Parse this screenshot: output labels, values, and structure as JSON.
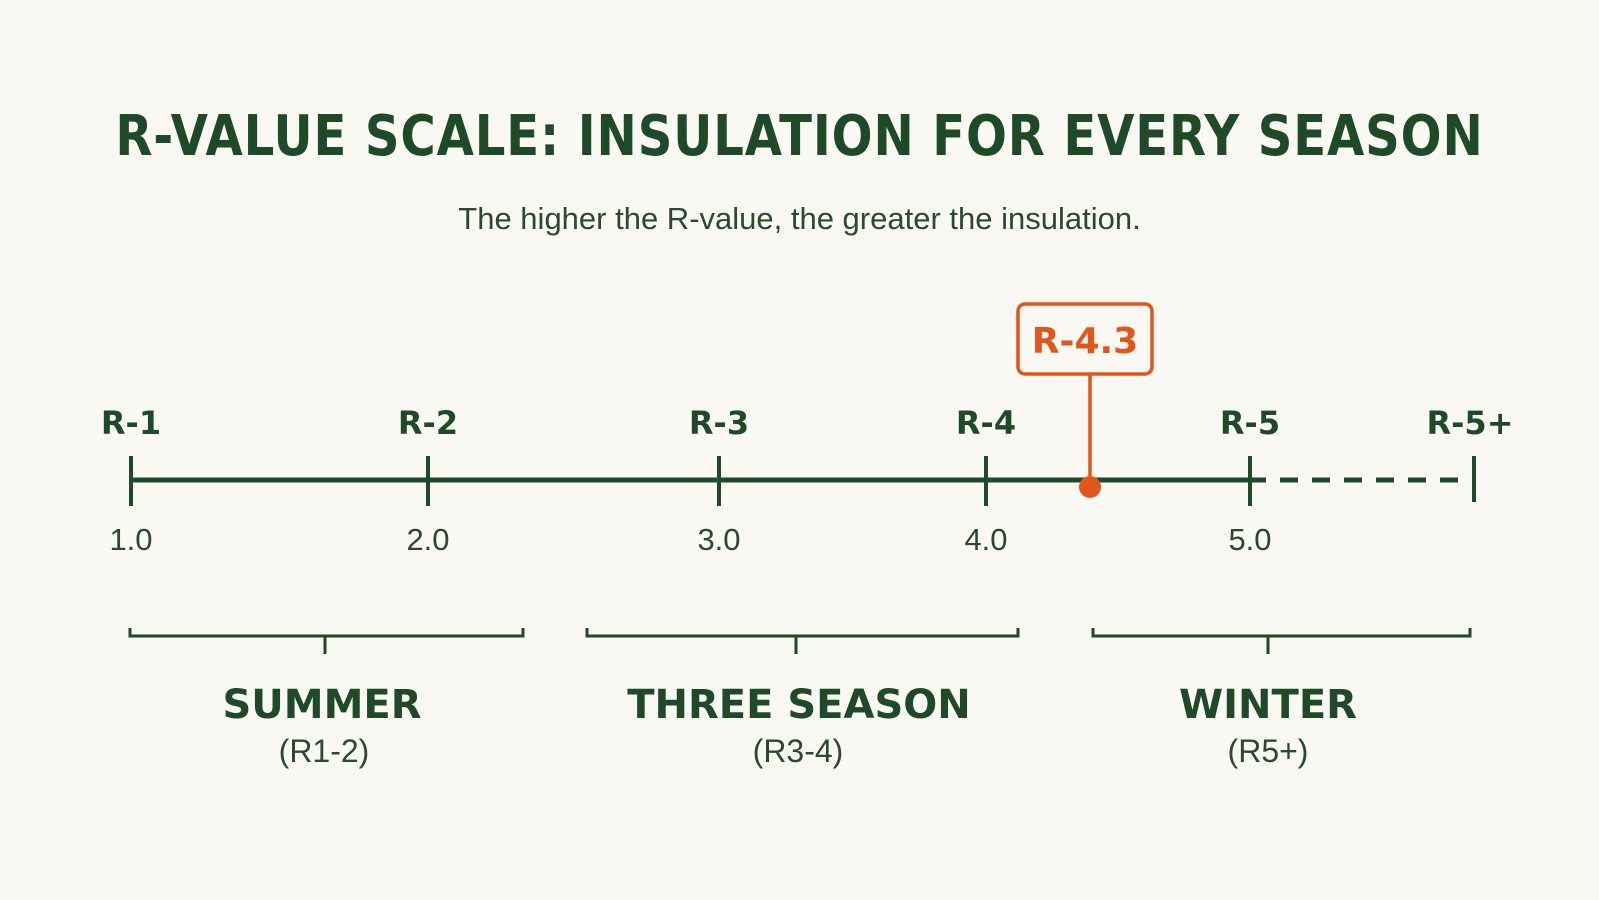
{
  "title": "R-VALUE SCALE: INSULATION FOR EVERY SEASON",
  "subtitle": "The higher the R-value, the greater the insulation.",
  "colors": {
    "background": "#faf8f2",
    "primary": "#1f4a27",
    "accent": "#e0571d"
  },
  "scale": {
    "ticks": [
      {
        "label": "R-1",
        "value_label": "1.0",
        "value": 1.0
      },
      {
        "label": "R-2",
        "value_label": "2.0",
        "value": 2.0
      },
      {
        "label": "R-3",
        "value_label": "3.0",
        "value": 3.0
      },
      {
        "label": "R-4",
        "value_label": "4.0",
        "value": 4.0
      },
      {
        "label": "R-5",
        "value_label": "5.0",
        "value": 5.0
      },
      {
        "label": "R-5+",
        "value_label": "",
        "value": null
      }
    ],
    "marker": {
      "label": "R-4.3",
      "value": 4.3
    }
  },
  "ranges": [
    {
      "name": "SUMMER",
      "range": "(R1-2)"
    },
    {
      "name": "THREE SEASON",
      "range": "(R3-4)"
    },
    {
      "name": "WINTER",
      "range": "(R5+)"
    }
  ]
}
